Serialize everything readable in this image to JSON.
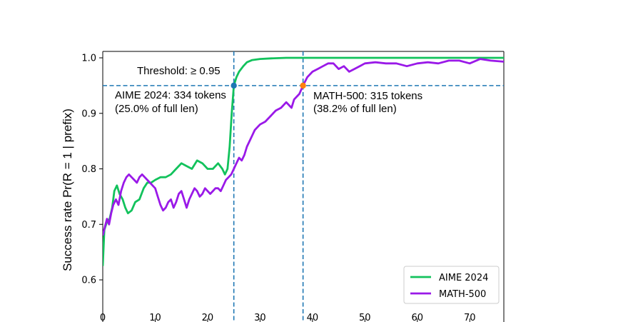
{
  "chart_data": {
    "type": "line",
    "title": "",
    "xlabel": "",
    "ylabel": "Success rate Pr(R = 1 | prefix)",
    "xlim": [
      0,
      76.5
    ],
    "ylim": [
      0.55,
      1.01
    ],
    "x_ticks": [
      "0",
      "10",
      "20",
      "30",
      "40",
      "50",
      "60",
      "70"
    ],
    "y_ticks": [
      "0.6",
      "0.7",
      "0.8",
      "0.9",
      "1.0"
    ],
    "grid": false,
    "legend_position": "bottom-right",
    "threshold": {
      "value": 0.95,
      "label": "Threshold: ≥ 0.95",
      "color": "#1f77b4"
    },
    "series": [
      {
        "name": "AIME 2024",
        "color": "#12c25c",
        "points": [
          [
            0,
            0.625
          ],
          [
            0.3,
            0.69
          ],
          [
            0.8,
            0.705
          ],
          [
            1.3,
            0.71
          ],
          [
            1.8,
            0.73
          ],
          [
            2.2,
            0.76
          ],
          [
            2.7,
            0.77
          ],
          [
            3.2,
            0.755
          ],
          [
            3.8,
            0.745
          ],
          [
            4.3,
            0.73
          ],
          [
            4.8,
            0.72
          ],
          [
            5.5,
            0.725
          ],
          [
            6.2,
            0.74
          ],
          [
            7,
            0.745
          ],
          [
            7.8,
            0.765
          ],
          [
            8.5,
            0.775
          ],
          [
            9.2,
            0.775
          ],
          [
            10,
            0.78
          ],
          [
            11,
            0.785
          ],
          [
            12,
            0.785
          ],
          [
            13,
            0.79
          ],
          [
            14,
            0.8
          ],
          [
            15,
            0.81
          ],
          [
            16,
            0.805
          ],
          [
            17,
            0.8
          ],
          [
            18,
            0.815
          ],
          [
            19,
            0.81
          ],
          [
            20,
            0.8
          ],
          [
            21,
            0.8
          ],
          [
            22,
            0.81
          ],
          [
            22.8,
            0.8
          ],
          [
            23.3,
            0.79
          ],
          [
            23.8,
            0.8
          ],
          [
            24.2,
            0.84
          ],
          [
            24.6,
            0.9
          ],
          [
            25,
            0.95
          ],
          [
            25.5,
            0.965
          ],
          [
            26,
            0.975
          ],
          [
            26.8,
            0.985
          ],
          [
            27.5,
            0.992
          ],
          [
            28.5,
            0.996
          ],
          [
            30,
            0.998
          ],
          [
            32,
            0.999
          ],
          [
            35,
            1.0
          ],
          [
            40,
            1.0
          ],
          [
            50,
            1.0
          ],
          [
            60,
            1.0
          ],
          [
            70,
            1.0
          ],
          [
            76.5,
            1.0
          ]
        ]
      },
      {
        "name": "MATH-500",
        "color": "#9a19e8",
        "points": [
          [
            0,
            0.68
          ],
          [
            0.4,
            0.695
          ],
          [
            0.8,
            0.71
          ],
          [
            1.2,
            0.7
          ],
          [
            1.6,
            0.72
          ],
          [
            2,
            0.735
          ],
          [
            2.5,
            0.745
          ],
          [
            3,
            0.735
          ],
          [
            3.5,
            0.76
          ],
          [
            4,
            0.775
          ],
          [
            4.5,
            0.785
          ],
          [
            5,
            0.79
          ],
          [
            5.5,
            0.785
          ],
          [
            6,
            0.78
          ],
          [
            6.5,
            0.775
          ],
          [
            7,
            0.785
          ],
          [
            7.5,
            0.79
          ],
          [
            8,
            0.785
          ],
          [
            8.5,
            0.78
          ],
          [
            9,
            0.775
          ],
          [
            9.5,
            0.77
          ],
          [
            10,
            0.765
          ],
          [
            10.5,
            0.75
          ],
          [
            11,
            0.735
          ],
          [
            11.5,
            0.725
          ],
          [
            12,
            0.73
          ],
          [
            12.5,
            0.74
          ],
          [
            13,
            0.745
          ],
          [
            13.5,
            0.73
          ],
          [
            14,
            0.74
          ],
          [
            14.5,
            0.755
          ],
          [
            15,
            0.76
          ],
          [
            15.5,
            0.745
          ],
          [
            16,
            0.73
          ],
          [
            16.5,
            0.745
          ],
          [
            17,
            0.755
          ],
          [
            17.5,
            0.765
          ],
          [
            18,
            0.76
          ],
          [
            18.5,
            0.75
          ],
          [
            19,
            0.755
          ],
          [
            19.5,
            0.765
          ],
          [
            20,
            0.76
          ],
          [
            20.5,
            0.755
          ],
          [
            21,
            0.76
          ],
          [
            21.5,
            0.765
          ],
          [
            22,
            0.765
          ],
          [
            22.5,
            0.76
          ],
          [
            23,
            0.77
          ],
          [
            23.5,
            0.78
          ],
          [
            24,
            0.785
          ],
          [
            24.5,
            0.79
          ],
          [
            25,
            0.8
          ],
          [
            25.5,
            0.81
          ],
          [
            26,
            0.82
          ],
          [
            26.5,
            0.815
          ],
          [
            27,
            0.825
          ],
          [
            27.5,
            0.84
          ],
          [
            28,
            0.85
          ],
          [
            28.5,
            0.86
          ],
          [
            29,
            0.87
          ],
          [
            29.5,
            0.875
          ],
          [
            30,
            0.88
          ],
          [
            31,
            0.885
          ],
          [
            32,
            0.895
          ],
          [
            33,
            0.905
          ],
          [
            34,
            0.91
          ],
          [
            35,
            0.92
          ],
          [
            36,
            0.91
          ],
          [
            36.5,
            0.925
          ],
          [
            37,
            0.93
          ],
          [
            37.5,
            0.935
          ],
          [
            38.2,
            0.95
          ],
          [
            39,
            0.965
          ],
          [
            40,
            0.975
          ],
          [
            41,
            0.98
          ],
          [
            42,
            0.985
          ],
          [
            43,
            0.99
          ],
          [
            44,
            0.99
          ],
          [
            45,
            0.98
          ],
          [
            46,
            0.985
          ],
          [
            47,
            0.975
          ],
          [
            48,
            0.98
          ],
          [
            49,
            0.985
          ],
          [
            50,
            0.99
          ],
          [
            52,
            0.992
          ],
          [
            54,
            0.99
          ],
          [
            56,
            0.99
          ],
          [
            58,
            0.985
          ],
          [
            60,
            0.99
          ],
          [
            62,
            0.992
          ],
          [
            64,
            0.99
          ],
          [
            66,
            0.995
          ],
          [
            68,
            0.995
          ],
          [
            70,
            0.99
          ],
          [
            72,
            0.998
          ],
          [
            74,
            0.995
          ],
          [
            76.5,
            0.993
          ]
        ]
      }
    ],
    "annotations": [
      {
        "name": "aime-crossing",
        "x": 25.0,
        "y": 0.95,
        "line1": "AIME 2024: 334 tokens",
        "line2": "(25.0% of full len)",
        "marker_color": "#1f77b4"
      },
      {
        "name": "math-crossing",
        "x": 38.2,
        "y": 0.95,
        "line1": "MATH-500: 315 tokens",
        "line2": "(38.2% of full len)",
        "marker_color": "#ff7f0e"
      }
    ]
  }
}
